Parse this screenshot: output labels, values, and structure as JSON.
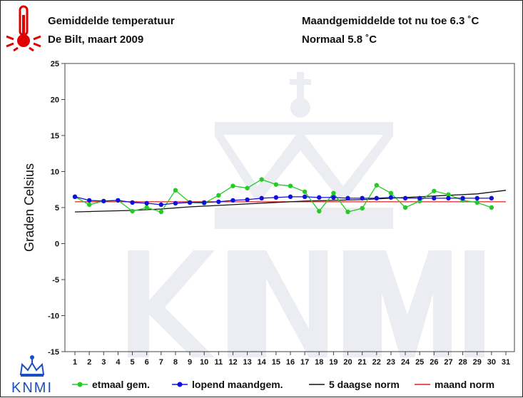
{
  "header": {
    "title": "Gemiddelde temperatuur",
    "subtitle": "De Bilt, maart 2009",
    "month_avg": "Maandgemiddelde tot nu toe 6.3 ˚C",
    "normal": "Normaal 5.8 ˚C"
  },
  "logo": {
    "text": "KNMI",
    "icon": "crown-icon"
  },
  "thermometer": {
    "icon": "thermometer-icon",
    "color": "#e00000"
  },
  "chart_data": {
    "type": "line",
    "ylabel": "Graden Celsius",
    "xlabel": "",
    "xlim": [
      1,
      31
    ],
    "ylim": [
      -15,
      25
    ],
    "x_ticks": [
      1,
      2,
      3,
      4,
      5,
      6,
      7,
      8,
      9,
      10,
      11,
      12,
      13,
      14,
      15,
      16,
      17,
      18,
      19,
      20,
      21,
      22,
      23,
      24,
      25,
      26,
      27,
      28,
      29,
      30,
      31
    ],
    "y_ticks": [
      25,
      20,
      15,
      10,
      5,
      0,
      -5,
      -10,
      -15
    ],
    "grid": false,
    "legend_position": "bottom",
    "watermark": "KNMI",
    "series": [
      {
        "name": "etmaal gem.",
        "color": "#22cc22",
        "marker": "dot",
        "x": [
          1,
          2,
          3,
          4,
          5,
          6,
          7,
          8,
          9,
          10,
          11,
          12,
          13,
          14,
          15,
          16,
          17,
          18,
          19,
          20,
          21,
          22,
          23,
          24,
          25,
          26,
          27,
          28,
          29,
          30
        ],
        "values": [
          6.5,
          5.4,
          5.9,
          6.0,
          4.5,
          5.0,
          4.4,
          7.4,
          5.7,
          5.6,
          6.7,
          8.0,
          7.7,
          8.9,
          8.2,
          8.0,
          7.2,
          4.5,
          7.0,
          4.4,
          4.9,
          8.1,
          7.0,
          5.0,
          5.9,
          7.3,
          6.8,
          6.0,
          5.7,
          5.0
        ]
      },
      {
        "name": "lopend maandgem.",
        "color": "#1010dd",
        "marker": "dot",
        "x": [
          1,
          2,
          3,
          4,
          5,
          6,
          7,
          8,
          9,
          10,
          11,
          12,
          13,
          14,
          15,
          16,
          17,
          18,
          19,
          20,
          21,
          22,
          23,
          24,
          25,
          26,
          27,
          28,
          29,
          30
        ],
        "values": [
          6.5,
          6.0,
          5.9,
          6.0,
          5.7,
          5.6,
          5.4,
          5.6,
          5.7,
          5.7,
          5.8,
          6.0,
          6.1,
          6.3,
          6.4,
          6.5,
          6.5,
          6.4,
          6.4,
          6.3,
          6.3,
          6.3,
          6.4,
          6.3,
          6.3,
          6.3,
          6.3,
          6.3,
          6.3,
          6.3
        ]
      },
      {
        "name": "5 daagse norm",
        "color": "#111111",
        "marker": "none",
        "x": [
          1,
          3,
          5,
          7,
          9,
          11,
          13,
          15,
          17,
          19,
          21,
          23,
          25,
          27,
          29,
          31
        ],
        "values": [
          4.4,
          4.5,
          4.6,
          4.8,
          5.1,
          5.3,
          5.5,
          5.7,
          5.9,
          6.0,
          6.1,
          6.3,
          6.5,
          6.7,
          6.9,
          7.4
        ]
      },
      {
        "name": "maand norm",
        "color": "#e02020",
        "marker": "none",
        "x": [
          1,
          31
        ],
        "values": [
          5.8,
          5.8
        ]
      }
    ]
  }
}
